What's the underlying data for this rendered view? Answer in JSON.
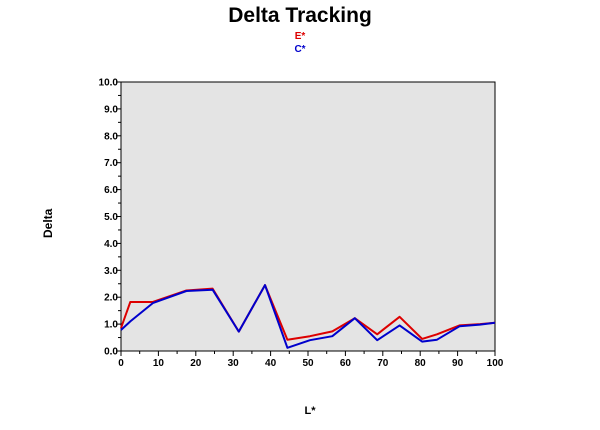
{
  "chart_data": {
    "type": "line",
    "title": "Delta Tracking",
    "xlabel": "L*",
    "ylabel": "Delta",
    "xlim": [
      0,
      100
    ],
    "ylim": [
      0,
      10
    ],
    "x_ticks": [
      "0",
      "10",
      "20",
      "30",
      "40",
      "50",
      "60",
      "70",
      "80",
      "90",
      "100"
    ],
    "y_ticks": [
      "0.0",
      "1.0",
      "2.0",
      "3.0",
      "4.0",
      "5.0",
      "6.0",
      "7.0",
      "8.0",
      "9.0",
      "10.0"
    ],
    "grid": false,
    "legend_position": "top-center",
    "plot_background": "#e4e4e4",
    "series": [
      {
        "name": "E*",
        "color": "#dd0000",
        "x": [
          0,
          2.5,
          8.5,
          17.5,
          24.5,
          31.5,
          38.5,
          44.5,
          50.5,
          56.5,
          62.5,
          68.5,
          74.5,
          80.5,
          84.5,
          90.5,
          96,
          100
        ],
        "y": [
          0.85,
          1.82,
          1.82,
          2.25,
          2.32,
          0.72,
          2.45,
          0.42,
          0.55,
          0.73,
          1.22,
          0.62,
          1.27,
          0.45,
          0.62,
          0.95,
          1.0,
          1.05
        ]
      },
      {
        "name": "C*",
        "color": "#0000cc",
        "x": [
          0,
          2.5,
          8.5,
          17.5,
          24.5,
          31.5,
          38.5,
          44.5,
          50.5,
          56.5,
          62.5,
          68.5,
          74.5,
          80.5,
          84.5,
          90.5,
          96,
          100
        ],
        "y": [
          0.78,
          1.1,
          1.78,
          2.23,
          2.28,
          0.72,
          2.45,
          0.12,
          0.4,
          0.55,
          1.22,
          0.4,
          0.95,
          0.35,
          0.42,
          0.92,
          0.98,
          1.05
        ]
      }
    ]
  }
}
